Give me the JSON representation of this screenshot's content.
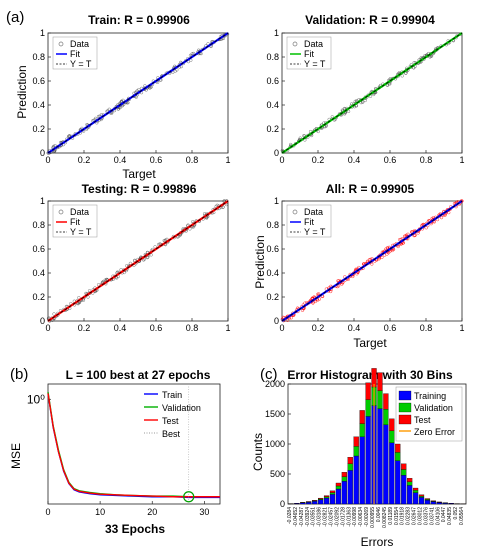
{
  "panel_labels": {
    "a": "(a)",
    "b": "(b)",
    "c": "(c)"
  },
  "colors": {
    "train_fit": "#0000ff",
    "validation_fit": "#00c000",
    "test_fit": "#ff0000",
    "all_fit": "#0000ff",
    "all_data": "#ff0000",
    "hist_training": "#0000ff",
    "hist_validation": "#00cc00",
    "hist_test": "#ff0000",
    "zero_error": "#ff9900"
  },
  "regression_legend": {
    "data": "Data",
    "fit": "Fit",
    "yt": "Y = T"
  },
  "chart_data": [
    {
      "type": "scatter",
      "title": "Train: R = 0.99906",
      "xlabel": "Target",
      "ylabel": "Prediction",
      "xlim": [
        0,
        1
      ],
      "ylim": [
        0,
        1
      ],
      "xticks": [
        "0",
        "0.2",
        "0.4",
        "0.6",
        "0.8",
        "1"
      ],
      "yticks": [
        "0",
        "0.2",
        "0.4",
        "0.6",
        "0.8",
        "1"
      ],
      "r": 0.99906,
      "fit": {
        "slope": 1,
        "intercept": 0
      }
    },
    {
      "type": "scatter",
      "title": "Validation: R = 0.99904",
      "xlabel": "",
      "ylabel": "",
      "xlim": [
        0,
        1
      ],
      "ylim": [
        0,
        1
      ],
      "xticks": [
        "0",
        "0.2",
        "0.4",
        "0.6",
        "0.8",
        "1"
      ],
      "yticks": [
        "0",
        "0.2",
        "0.4",
        "0.6",
        "0.8",
        "1"
      ],
      "r": 0.99904,
      "fit": {
        "slope": 1,
        "intercept": 0
      }
    },
    {
      "type": "scatter",
      "title": "Testing: R = 0.99896",
      "xlabel": "",
      "ylabel": "",
      "xlim": [
        0,
        1
      ],
      "ylim": [
        0,
        1
      ],
      "xticks": [
        "0",
        "0.2",
        "0.4",
        "0.6",
        "0.8",
        "1"
      ],
      "yticks": [
        "0",
        "0.2",
        "0.4",
        "0.6",
        "0.8",
        "1"
      ],
      "r": 0.99896,
      "fit": {
        "slope": 1,
        "intercept": 0
      }
    },
    {
      "type": "scatter",
      "title": "All: R = 0.99905",
      "xlabel": "Target",
      "ylabel": "Prediction",
      "xlim": [
        0,
        1
      ],
      "ylim": [
        0,
        1
      ],
      "xticks": [
        "0",
        "0.2",
        "0.4",
        "0.6",
        "0.8",
        "1"
      ],
      "yticks": [
        "0",
        "0.2",
        "0.4",
        "0.6",
        "0.8",
        "1"
      ],
      "r": 0.99905,
      "fit": {
        "slope": 1,
        "intercept": 0
      }
    },
    {
      "type": "line",
      "title": "L = 100 best at 27 epochs",
      "xlabel": "33 Epochs",
      "ylabel": "MSE",
      "xlim": [
        0,
        33
      ],
      "log_y": true,
      "ytick_label": "10⁰",
      "xticks": [
        0,
        10,
        20,
        30
      ],
      "legend": [
        "Train",
        "Validation",
        "Test",
        "Best"
      ],
      "best_epoch": 27,
      "series": [
        {
          "name": "Train",
          "x": [
            0,
            1,
            2,
            3,
            4,
            5,
            6,
            8,
            10,
            13,
            16,
            20,
            24,
            27,
            30,
            33
          ],
          "y": [
            1.2,
            0.42,
            0.2,
            0.11,
            0.075,
            0.062,
            0.058,
            0.055,
            0.053,
            0.052,
            0.051,
            0.05,
            0.05,
            0.049,
            0.049,
            0.049
          ]
        },
        {
          "name": "Validation",
          "x": [
            0,
            1,
            2,
            3,
            4,
            5,
            6,
            8,
            10,
            13,
            16,
            20,
            24,
            27,
            30,
            33
          ],
          "y": [
            1.25,
            0.44,
            0.21,
            0.115,
            0.078,
            0.064,
            0.06,
            0.057,
            0.055,
            0.053,
            0.052,
            0.051,
            0.051,
            0.05,
            0.05,
            0.05
          ]
        },
        {
          "name": "Test",
          "x": [
            0,
            1,
            2,
            3,
            4,
            5,
            6,
            8,
            10,
            13,
            16,
            20,
            24,
            27,
            30,
            33
          ],
          "y": [
            1.2,
            0.43,
            0.2,
            0.112,
            0.076,
            0.063,
            0.059,
            0.056,
            0.054,
            0.053,
            0.052,
            0.051,
            0.05,
            0.05,
            0.05,
            0.05
          ]
        }
      ]
    },
    {
      "type": "bar",
      "title": "Error Histogram with 30 Bins",
      "xlabel": "Errors",
      "ylabel": "Counts",
      "ylim": [
        0,
        2000
      ],
      "yticks": [
        "0",
        "500",
        "1000",
        "1500",
        "2000"
      ],
      "legend": [
        "Training",
        "Validation",
        "Test",
        "Zero Error"
      ],
      "zero_error_bin": 14,
      "categories": [
        "-0.0284",
        "-0.04652",
        "-0.04287",
        "-0.03924",
        "-0.03551",
        "-0.03186",
        "-0.02821",
        "-0.02457",
        "-0.02092",
        "-0.01728",
        "-0.01363",
        "-0.00998",
        "-0.00634",
        "-0.00269",
        "0.000955",
        "0.0046",
        "0.008245",
        "0.01189",
        "0.01554",
        "0.01918",
        "0.02283",
        "0.02647",
        "0.03012",
        "0.03376",
        "0.03741",
        "0.04106",
        "0.0447",
        "0.04835",
        "0.052",
        "0.05564"
      ],
      "series": [
        {
          "name": "Training",
          "values": [
            5,
            10,
            20,
            30,
            45,
            70,
            100,
            160,
            250,
            380,
            560,
            800,
            1120,
            1460,
            1640,
            1590,
            1320,
            1020,
            720,
            480,
            310,
            190,
            110,
            65,
            40,
            25,
            15,
            10,
            5,
            3
          ]
        },
        {
          "name": "Validation",
          "values": [
            1,
            2,
            4,
            6,
            9,
            14,
            20,
            30,
            50,
            75,
            110,
            160,
            220,
            280,
            310,
            300,
            260,
            200,
            140,
            95,
            60,
            38,
            22,
            13,
            8,
            5,
            3,
            2,
            1,
            1
          ]
        },
        {
          "name": "Test",
          "values": [
            1,
            2,
            4,
            6,
            9,
            14,
            20,
            30,
            50,
            75,
            110,
            160,
            220,
            280,
            310,
            300,
            260,
            200,
            140,
            95,
            60,
            38,
            22,
            13,
            8,
            5,
            3,
            2,
            1,
            1
          ]
        }
      ]
    }
  ]
}
